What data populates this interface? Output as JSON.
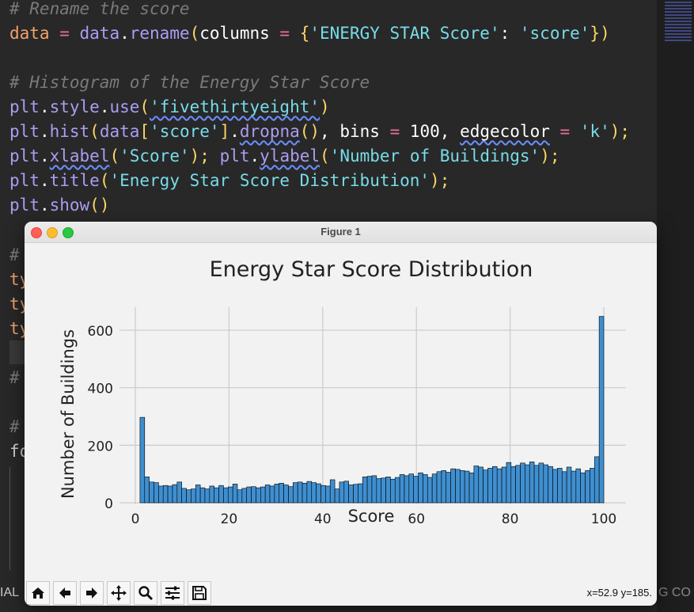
{
  "code": {
    "comment1": "# Rename the score",
    "line_rename": {
      "var": "data",
      "eq": " = ",
      "obj": "data",
      "dot": ".",
      "fn": "rename",
      "open": "(",
      "kw": "columns",
      "kweq": " = ",
      "brace_open": "{",
      "key": "'ENERGY STAR Score'",
      "colon": ": ",
      "val": "'score'",
      "brace_close": "}",
      "close": ")"
    },
    "comment2": "# Histogram of the Energy Star Score",
    "line_style": {
      "obj": "plt",
      "dot1": ".",
      "attr": "style",
      "dot2": ".",
      "fn": "use",
      "open": "(",
      "arg": "'fivethirtyeight'",
      "close": ")"
    },
    "line_hist": {
      "obj": "plt",
      "dot": ".",
      "fn": "hist",
      "open": "(",
      "data": "data",
      "bopen": "[",
      "key": "'score'",
      "bclose": "]",
      "dot2": ".",
      "fn2": "dropna",
      "call": "()",
      "comma1": ", ",
      "kw1": "bins",
      "eq1": " = ",
      "num": "100",
      "comma2": ", ",
      "kw2": "edgecolor",
      "eq2": " = ",
      "str": "'k'",
      "close": ");"
    },
    "line_labels": {
      "obj1": "plt",
      "dot1": ".",
      "fn1": "xlabel",
      "open1": "(",
      "arg1": "'Score'",
      "close1": ");",
      "sp": " ",
      "obj2": "plt",
      "dot2": ".",
      "fn2": "ylabel",
      "open2": "(",
      "arg2": "'Number of Buildings'",
      "close2": ");"
    },
    "line_title": {
      "obj": "plt",
      "dot": ".",
      "fn": "title",
      "open": "(",
      "arg": "'Energy Star Score Distribution'",
      "close": ");"
    },
    "line_show": {
      "obj": "plt",
      "dot": ".",
      "fn": "show",
      "call": "()"
    },
    "partial": [
      "#",
      "ty",
      "ty",
      "ty",
      "#",
      "#",
      "fo"
    ]
  },
  "status": {
    "terminal_left": "IAL",
    "terminal_right": "G CO"
  },
  "window": {
    "title": "Figure 1",
    "coords": "x=52.9 y=185."
  },
  "toolbar": {
    "buttons": [
      "home-icon",
      "back-arrow-icon",
      "forward-arrow-icon",
      "pan-icon",
      "zoom-icon",
      "subplots-icon",
      "save-icon"
    ]
  },
  "colors": {
    "bar": "#3f8fd0",
    "edge": "#000000",
    "plot_bg": "#f2f2f2",
    "grid": "#cbcbcb"
  },
  "chart_data": {
    "type": "bar",
    "title": "Energy Star Score Distribution",
    "xlabel": "Score",
    "ylabel": "Number of Buildings",
    "xlim": [
      0,
      100
    ],
    "ylim": [
      0,
      680
    ],
    "xticks": [
      0,
      20,
      40,
      60,
      80,
      100
    ],
    "yticks": [
      0,
      200,
      400,
      600
    ],
    "grid": true,
    "bins": 100,
    "bin_range": [
      1,
      100
    ],
    "values": [
      297,
      90,
      72,
      70,
      58,
      60,
      58,
      63,
      72,
      50,
      45,
      48,
      62,
      52,
      48,
      58,
      52,
      60,
      52,
      55,
      65,
      45,
      50,
      55,
      56,
      52,
      55,
      62,
      58,
      65,
      68,
      62,
      56,
      70,
      72,
      68,
      74,
      70,
      66,
      60,
      58,
      80,
      48,
      72,
      75,
      62,
      64,
      66,
      90,
      92,
      94,
      84,
      86,
      90,
      82,
      88,
      98,
      94,
      100,
      92,
      104,
      98,
      88,
      100,
      108,
      112,
      106,
      118,
      116,
      112,
      110,
      104,
      128,
      124,
      114,
      120,
      126,
      118,
      124,
      140,
      126,
      130,
      138,
      132,
      142,
      130,
      138,
      132,
      126,
      116,
      120,
      108,
      124,
      110,
      118,
      104,
      112,
      120,
      160,
      648
    ]
  }
}
